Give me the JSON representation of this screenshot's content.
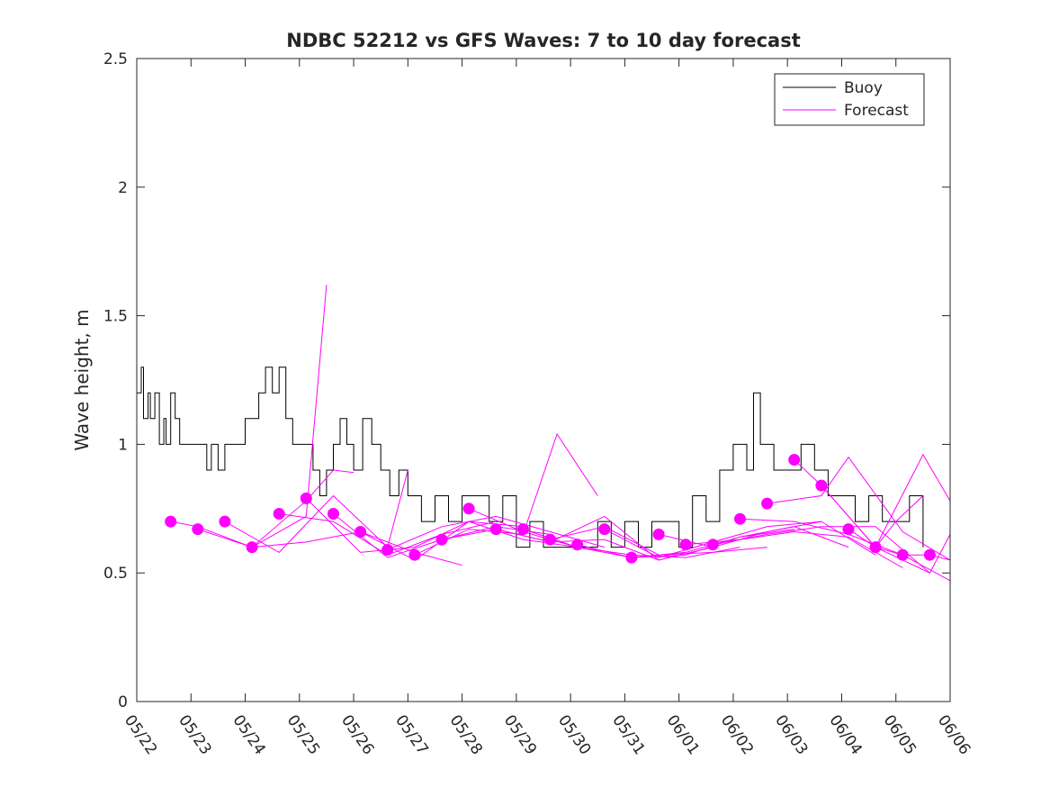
{
  "chart_data": {
    "type": "line",
    "title": "NDBC 52212 vs GFS Waves: 7 to 10 day forecast",
    "xlabel": "",
    "ylabel": "Wave height, m",
    "x_axis_kind": "date",
    "xlim": [
      "2017-05-22",
      "2017-06-06"
    ],
    "ylim": [
      0,
      2.5
    ],
    "x_tick_labels": [
      "05/22",
      "05/23",
      "05/24",
      "05/25",
      "05/26",
      "05/27",
      "05/28",
      "05/29",
      "05/30",
      "05/31",
      "06/01",
      "06/02",
      "06/03",
      "06/04",
      "06/05",
      "06/06"
    ],
    "y_tick_values": [
      0,
      0.5,
      1,
      1.5,
      2,
      2.5
    ],
    "y_tick_labels": [
      "0",
      "0.5",
      "1",
      "1.5",
      "2",
      "2.5"
    ],
    "grid": false,
    "legend": {
      "placement": "top-right",
      "entries": [
        "Buoy",
        "Forecast"
      ]
    },
    "colors": {
      "buoy": "#000000",
      "forecast": "#ff00ff"
    },
    "buoy": {
      "name": "Buoy",
      "step": true,
      "x": [
        "2017-05-22T00:00",
        "2017-05-22T02:00",
        "2017-05-22T03:00",
        "2017-05-22T05:00",
        "2017-05-22T06:00",
        "2017-05-22T08:00",
        "2017-05-22T10:00",
        "2017-05-22T12:00",
        "2017-05-22T13:00",
        "2017-05-22T15:00",
        "2017-05-22T17:00",
        "2017-05-22T19:00",
        "2017-05-22T21:00",
        "2017-05-23T00:00",
        "2017-05-23T04:00",
        "2017-05-23T07:00",
        "2017-05-23T09:00",
        "2017-05-23T12:00",
        "2017-05-23T15:00",
        "2017-05-23T18:00",
        "2017-05-24T00:00",
        "2017-05-24T06:00",
        "2017-05-24T09:00",
        "2017-05-24T12:00",
        "2017-05-24T15:00",
        "2017-05-24T18:00",
        "2017-05-24T21:00",
        "2017-05-25T00:00",
        "2017-05-25T03:00",
        "2017-05-25T06:00",
        "2017-05-25T09:00",
        "2017-05-25T12:00",
        "2017-05-25T15:00",
        "2017-05-25T18:00",
        "2017-05-25T21:00",
        "2017-05-26T00:00",
        "2017-05-26T04:00",
        "2017-05-26T08:00",
        "2017-05-26T12:00",
        "2017-05-26T16:00",
        "2017-05-26T20:00",
        "2017-05-27T00:00",
        "2017-05-27T06:00",
        "2017-05-27T12:00",
        "2017-05-27T18:00",
        "2017-05-28T00:00",
        "2017-05-28T12:00",
        "2017-05-28T18:00",
        "2017-05-29T00:00",
        "2017-05-29T06:00",
        "2017-05-29T12:00",
        "2017-05-29T18:00",
        "2017-05-30T00:00",
        "2017-05-30T12:00",
        "2017-05-30T18:00",
        "2017-05-31T00:00",
        "2017-05-31T06:00",
        "2017-05-31T12:00",
        "2017-05-31T18:00",
        "2017-06-01T00:00",
        "2017-06-01T06:00",
        "2017-06-01T12:00",
        "2017-06-01T18:00",
        "2017-06-02T00:00",
        "2017-06-02T06:00",
        "2017-06-02T09:00",
        "2017-06-02T12:00",
        "2017-06-02T18:00",
        "2017-06-03T00:00",
        "2017-06-03T06:00",
        "2017-06-03T12:00",
        "2017-06-03T18:00",
        "2017-06-04T00:00",
        "2017-06-04T06:00",
        "2017-06-04T12:00",
        "2017-06-04T18:00",
        "2017-06-05T00:00",
        "2017-06-05T06:00",
        "2017-06-05T12:00"
      ],
      "values": [
        1.2,
        1.3,
        1.1,
        1.2,
        1.1,
        1.2,
        1.0,
        1.1,
        1.0,
        1.2,
        1.1,
        1.0,
        1.0,
        1.0,
        1.0,
        0.9,
        1.0,
        0.9,
        1.0,
        1.0,
        1.1,
        1.2,
        1.3,
        1.2,
        1.3,
        1.1,
        1.0,
        1.0,
        1.0,
        0.9,
        0.8,
        0.9,
        1.0,
        1.1,
        1.0,
        0.9,
        1.1,
        1.0,
        0.9,
        0.8,
        0.9,
        0.8,
        0.7,
        0.8,
        0.7,
        0.8,
        0.7,
        0.8,
        0.6,
        0.7,
        0.6,
        0.6,
        0.6,
        0.7,
        0.6,
        0.7,
        0.6,
        0.7,
        0.7,
        0.6,
        0.8,
        0.7,
        0.9,
        1.0,
        0.9,
        1.2,
        1.0,
        0.9,
        0.9,
        1.0,
        0.9,
        0.8,
        0.8,
        0.7,
        0.8,
        0.7,
        0.7,
        0.8,
        0.6
      ]
    },
    "forecast_runs": [
      {
        "x": [
          "2017-05-22T15:00",
          "2017-05-23T03:00",
          "2017-05-24T03:00",
          "2017-05-25T03:00",
          "2017-05-25T12:00"
        ],
        "values": [
          0.7,
          0.68,
          0.6,
          0.72,
          1.62
        ]
      },
      {
        "x": [
          "2017-05-23T03:00",
          "2017-05-24T03:00",
          "2017-05-25T03:00",
          "2017-05-25T15:00",
          "2017-05-26T00:00"
        ],
        "values": [
          0.67,
          0.6,
          0.78,
          0.9,
          0.89
        ]
      },
      {
        "x": [
          "2017-05-23T15:00",
          "2017-05-24T15:00",
          "2017-05-25T15:00",
          "2017-05-26T15:00",
          "2017-05-27T00:00"
        ],
        "values": [
          0.7,
          0.58,
          0.8,
          0.6,
          0.9
        ]
      },
      {
        "x": [
          "2017-05-24T03:00",
          "2017-05-25T03:00",
          "2017-05-26T03:00",
          "2017-05-27T03:00",
          "2017-05-28T00:00"
        ],
        "values": [
          0.6,
          0.62,
          0.66,
          0.58,
          0.53
        ]
      },
      {
        "x": [
          "2017-05-24T15:00",
          "2017-05-25T15:00",
          "2017-05-26T15:00",
          "2017-05-27T15:00",
          "2017-05-28T15:00"
        ],
        "values": [
          0.73,
          0.7,
          0.57,
          0.65,
          0.7
        ]
      },
      {
        "x": [
          "2017-05-25T03:00",
          "2017-05-26T03:00",
          "2017-05-27T03:00",
          "2017-05-28T03:00",
          "2017-05-29T03:00"
        ],
        "values": [
          0.79,
          0.58,
          0.6,
          0.7,
          0.68
        ]
      },
      {
        "x": [
          "2017-05-25T15:00",
          "2017-05-26T15:00",
          "2017-05-27T15:00",
          "2017-05-28T15:00",
          "2017-05-29T15:00"
        ],
        "values": [
          0.73,
          0.56,
          0.63,
          0.68,
          0.65
        ]
      },
      {
        "x": [
          "2017-05-26T03:00",
          "2017-05-27T03:00",
          "2017-05-28T03:00",
          "2017-05-29T03:00",
          "2017-05-30T03:00"
        ],
        "values": [
          0.66,
          0.55,
          0.7,
          0.63,
          0.6
        ]
      },
      {
        "x": [
          "2017-05-26T15:00",
          "2017-05-27T15:00",
          "2017-05-28T15:00",
          "2017-05-29T15:00",
          "2017-05-30T15:00"
        ],
        "values": [
          0.59,
          0.68,
          0.72,
          0.66,
          0.6
        ]
      },
      {
        "x": [
          "2017-05-27T03:00",
          "2017-05-28T03:00",
          "2017-05-29T03:00",
          "2017-05-29T18:00",
          "2017-05-30T12:00"
        ],
        "values": [
          0.57,
          0.67,
          0.65,
          1.04,
          0.8
        ]
      },
      {
        "x": [
          "2017-05-27T15:00",
          "2017-05-28T15:00",
          "2017-05-29T15:00",
          "2017-05-30T15:00",
          "2017-05-31T15:00"
        ],
        "values": [
          0.63,
          0.67,
          0.62,
          0.63,
          0.55
        ]
      },
      {
        "x": [
          "2017-05-28T03:00",
          "2017-05-29T03:00",
          "2017-05-30T03:00",
          "2017-05-31T03:00",
          "2017-06-01T03:00"
        ],
        "values": [
          0.75,
          0.66,
          0.6,
          0.56,
          0.58
        ]
      },
      {
        "x": [
          "2017-05-28T15:00",
          "2017-05-29T15:00",
          "2017-05-30T15:00",
          "2017-05-31T15:00",
          "2017-06-01T15:00"
        ],
        "values": [
          0.67,
          0.62,
          0.72,
          0.55,
          0.6
        ]
      },
      {
        "x": [
          "2017-05-29T03:00",
          "2017-05-30T03:00",
          "2017-05-31T03:00",
          "2017-06-01T03:00",
          "2017-06-02T03:00"
        ],
        "values": [
          0.67,
          0.6,
          0.57,
          0.56,
          0.6
        ]
      },
      {
        "x": [
          "2017-05-29T15:00",
          "2017-05-30T15:00",
          "2017-05-31T15:00",
          "2017-06-01T15:00",
          "2017-06-02T15:00"
        ],
        "values": [
          0.63,
          0.68,
          0.57,
          0.58,
          0.6
        ]
      },
      {
        "x": [
          "2017-05-30T03:00",
          "2017-05-31T03:00",
          "2017-06-01T03:00",
          "2017-06-02T03:00",
          "2017-06-03T03:00"
        ],
        "values": [
          0.61,
          0.56,
          0.58,
          0.64,
          0.67
        ]
      },
      {
        "x": [
          "2017-05-30T15:00",
          "2017-05-31T15:00",
          "2017-06-01T15:00",
          "2017-06-02T15:00",
          "2017-06-03T15:00"
        ],
        "values": [
          0.67,
          0.56,
          0.62,
          0.68,
          0.7
        ]
      },
      {
        "x": [
          "2017-05-31T03:00",
          "2017-06-01T03:00",
          "2017-06-02T03:00",
          "2017-06-03T03:00",
          "2017-06-04T03:00"
        ],
        "values": [
          0.56,
          0.57,
          0.64,
          0.68,
          0.6
        ]
      },
      {
        "x": [
          "2017-05-31T15:00",
          "2017-06-01T15:00",
          "2017-06-02T15:00",
          "2017-06-03T15:00",
          "2017-06-04T15:00"
        ],
        "values": [
          0.65,
          0.6,
          0.66,
          0.7,
          0.57
        ]
      },
      {
        "x": [
          "2017-06-01T03:00",
          "2017-06-02T03:00",
          "2017-06-03T03:00",
          "2017-06-04T03:00",
          "2017-06-05T03:00"
        ],
        "values": [
          0.61,
          0.63,
          0.66,
          0.64,
          0.52
        ]
      },
      {
        "x": [
          "2017-06-01T15:00",
          "2017-06-02T15:00",
          "2017-06-03T15:00",
          "2017-06-04T15:00",
          "2017-06-05T15:00"
        ],
        "values": [
          0.61,
          0.65,
          0.68,
          0.68,
          0.5
        ]
      },
      {
        "x": [
          "2017-06-02T03:00",
          "2017-06-03T03:00",
          "2017-06-04T03:00",
          "2017-06-05T03:00",
          "2017-06-06T00:00"
        ],
        "values": [
          0.71,
          0.7,
          0.65,
          0.57,
          0.47
        ]
      },
      {
        "x": [
          "2017-06-02T15:00",
          "2017-06-03T15:00",
          "2017-06-04T03:00",
          "2017-06-05T03:00",
          "2017-06-06T00:00"
        ],
        "values": [
          0.77,
          0.8,
          0.95,
          0.66,
          0.55
        ]
      },
      {
        "x": [
          "2017-06-03T03:00",
          "2017-06-03T15:00",
          "2017-06-04T15:00",
          "2017-06-05T12:00",
          "2017-06-06T00:00"
        ],
        "values": [
          0.94,
          0.84,
          0.6,
          0.96,
          0.78
        ]
      },
      {
        "x": [
          "2017-06-03T15:00",
          "2017-06-04T15:00",
          "2017-06-05T00:00",
          "2017-06-05T12:00"
        ],
        "values": [
          0.84,
          0.6,
          0.7,
          0.8
        ]
      },
      {
        "x": [
          "2017-06-04T03:00",
          "2017-06-04T15:00",
          "2017-06-05T03:00",
          "2017-06-05T15:00",
          "2017-06-06T00:00"
        ],
        "values": [
          0.67,
          0.6,
          0.55,
          0.5,
          0.65
        ]
      },
      {
        "x": [
          "2017-06-04T15:00",
          "2017-06-05T03:00",
          "2017-06-05T15:00",
          "2017-06-06T00:00"
        ],
        "values": [
          0.6,
          0.57,
          0.57,
          0.55
        ]
      }
    ],
    "forecast_markers": {
      "x": [
        "2017-05-22T15:00",
        "2017-05-23T03:00",
        "2017-05-23T15:00",
        "2017-05-24T03:00",
        "2017-05-24T15:00",
        "2017-05-25T03:00",
        "2017-05-25T15:00",
        "2017-05-26T03:00",
        "2017-05-26T15:00",
        "2017-05-27T03:00",
        "2017-05-27T15:00",
        "2017-05-28T03:00",
        "2017-05-28T15:00",
        "2017-05-29T03:00",
        "2017-05-29T15:00",
        "2017-05-30T03:00",
        "2017-05-30T15:00",
        "2017-05-31T03:00",
        "2017-05-31T15:00",
        "2017-06-01T03:00",
        "2017-06-01T15:00",
        "2017-06-02T03:00",
        "2017-06-02T15:00",
        "2017-06-03T03:00",
        "2017-06-03T15:00",
        "2017-06-04T03:00",
        "2017-06-04T15:00",
        "2017-06-05T03:00",
        "2017-06-05T15:00"
      ],
      "values": [
        0.7,
        0.67,
        0.7,
        0.6,
        0.73,
        0.79,
        0.73,
        0.66,
        0.59,
        0.57,
        0.63,
        0.75,
        0.67,
        0.67,
        0.63,
        0.61,
        0.67,
        0.56,
        0.65,
        0.61,
        0.61,
        0.71,
        0.77,
        0.94,
        0.84,
        0.67,
        0.6,
        0.57,
        0.57
      ]
    }
  }
}
